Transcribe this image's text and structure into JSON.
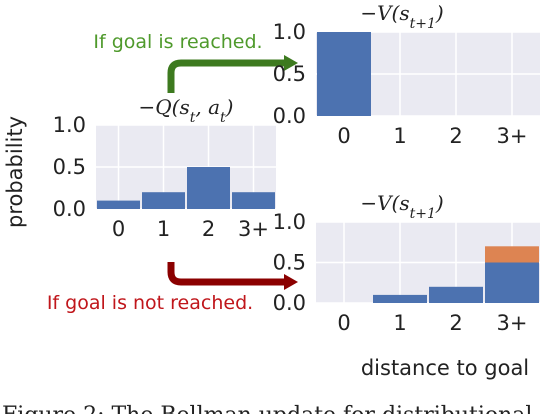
{
  "colors": {
    "bar": "#4c72b0",
    "bar_extra": "#dd8452",
    "panel_bg": "#eaeaf2",
    "grid": "#ffffff",
    "arrow_green": "#3d7a1f",
    "arrow_red": "#8b0000"
  },
  "annotations": {
    "reached": "If goal is reached.",
    "not_reached": "If goal is not reached."
  },
  "shared": {
    "ylabel": "probability",
    "xlabel": "distance to goal"
  },
  "caption": "Figure 2: The Bellman update for distributional",
  "chart_data": [
    {
      "id": "q",
      "type": "bar",
      "title": "−Q(s_t, a_t)",
      "categories": [
        "0",
        "1",
        "2",
        "3+"
      ],
      "values": [
        0.1,
        0.2,
        0.5,
        0.2
      ],
      "ylim": [
        0,
        1
      ],
      "yticks": [
        "0.0",
        "0.5",
        "1.0"
      ]
    },
    {
      "id": "v_reached",
      "type": "bar",
      "title": "−V(s_{t+1})",
      "categories": [
        "0",
        "1",
        "2",
        "3+"
      ],
      "values": [
        1.0,
        0,
        0,
        0
      ],
      "ylim": [
        0,
        1
      ],
      "yticks": [
        "0.0",
        "0.5",
        "1.0"
      ]
    },
    {
      "id": "v_not_reached",
      "type": "bar",
      "title": "−V(s_{t+1})",
      "categories": [
        "0",
        "1",
        "2",
        "3+"
      ],
      "values": [
        0,
        0.1,
        0.2,
        0.5
      ],
      "stacked_extra": [
        0,
        0,
        0,
        0.2
      ],
      "ylim": [
        0,
        1
      ],
      "yticks": [
        "0.0",
        "0.5",
        "1.0"
      ]
    }
  ]
}
